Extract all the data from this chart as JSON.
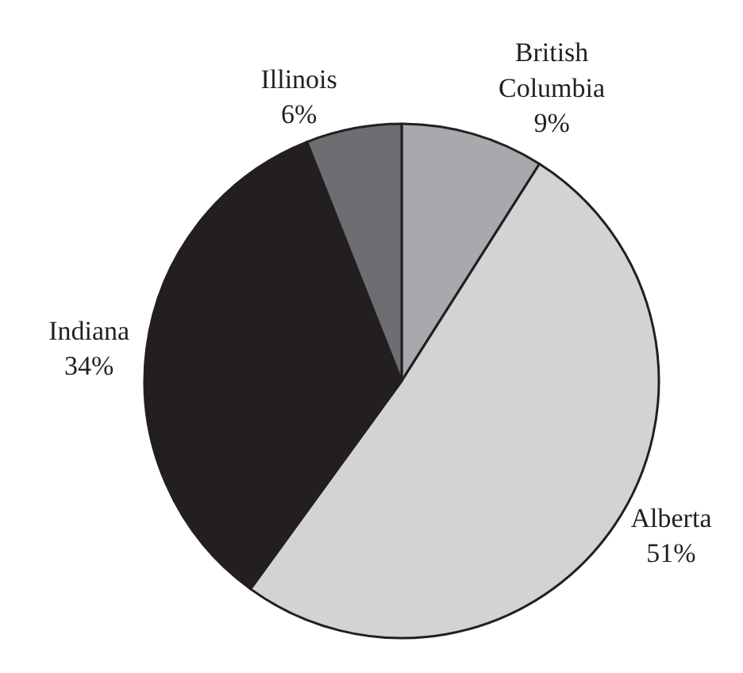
{
  "chart_data": {
    "type": "pie",
    "categories": [
      "British Columbia",
      "Alberta",
      "Indiana",
      "Illinois"
    ],
    "values": [
      9,
      51,
      34,
      6
    ],
    "value_labels": [
      "9%",
      "51%",
      "34%",
      "6%"
    ],
    "colors": [
      "#a7a9ac",
      "#d1d3d4",
      "#231f20",
      "#6d6e71"
    ],
    "legend": false
  }
}
